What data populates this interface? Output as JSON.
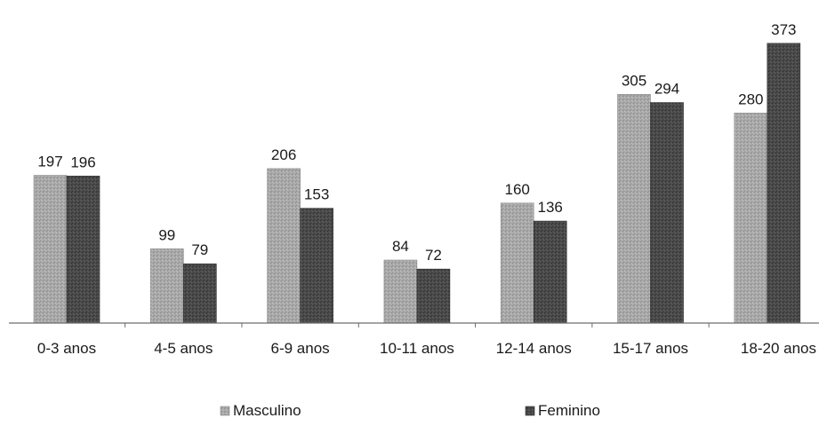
{
  "chart_data": {
    "type": "bar",
    "categories": [
      "0-3 anos",
      "4-5 anos",
      "6-9 anos",
      "10-11 anos",
      "12-14 anos",
      "15-17 anos",
      "18-20 anos"
    ],
    "series": [
      {
        "name": "Masculino",
        "values": [
          197,
          99,
          206,
          84,
          160,
          305,
          280
        ],
        "color": "#a8a8a8"
      },
      {
        "name": "Feminino",
        "values": [
          196,
          79,
          153,
          72,
          136,
          294,
          373
        ],
        "color": "#4a4a4a"
      }
    ],
    "title": "",
    "xlabel": "",
    "ylabel": "",
    "ylim": [
      0,
      400
    ],
    "grid": false,
    "legend": "bottom",
    "data_labels": true
  }
}
